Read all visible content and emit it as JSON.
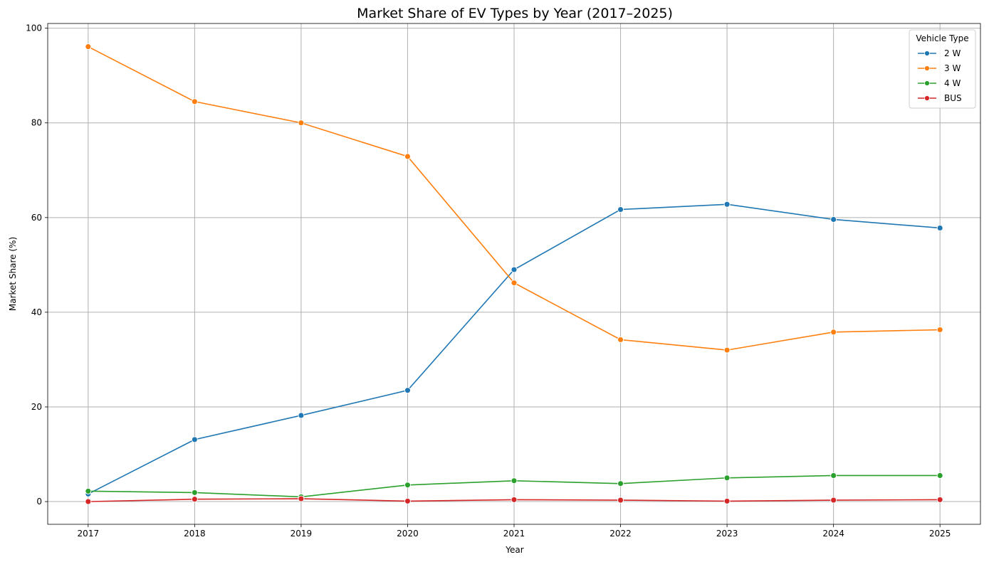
{
  "chart_data": {
    "type": "line",
    "title": "Market Share of EV Types by Year (2017–2025)",
    "xlabel": "Year",
    "ylabel": "Market Share (%)",
    "x": [
      "2017",
      "2018",
      "2019",
      "2020",
      "2021",
      "2022",
      "2023",
      "2024",
      "2025"
    ],
    "xlim": [
      2016.62,
      2025.38
    ],
    "ylim": [
      -4.8,
      101.0
    ],
    "yticks": [
      0,
      20,
      40,
      60,
      80,
      100
    ],
    "grid": true,
    "legend": {
      "title": "Vehicle Type",
      "placement": "top-right"
    },
    "series": [
      {
        "name": "2 W",
        "color": "#1f77b4",
        "values": [
          1.6,
          13.1,
          18.2,
          23.5,
          49.0,
          61.7,
          62.8,
          59.6,
          57.8
        ]
      },
      {
        "name": "3 W",
        "color": "#ff7f0e",
        "values": [
          96.1,
          84.5,
          80.0,
          72.9,
          46.2,
          34.2,
          32.0,
          35.8,
          36.3
        ]
      },
      {
        "name": "4 W",
        "color": "#2ca02c",
        "values": [
          2.2,
          1.9,
          1.0,
          3.5,
          4.4,
          3.8,
          5.0,
          5.5,
          5.5
        ]
      },
      {
        "name": "BUS",
        "color": "#d62728",
        "values": [
          0.0,
          0.5,
          0.6,
          0.1,
          0.4,
          0.3,
          0.1,
          0.3,
          0.4
        ]
      }
    ]
  }
}
